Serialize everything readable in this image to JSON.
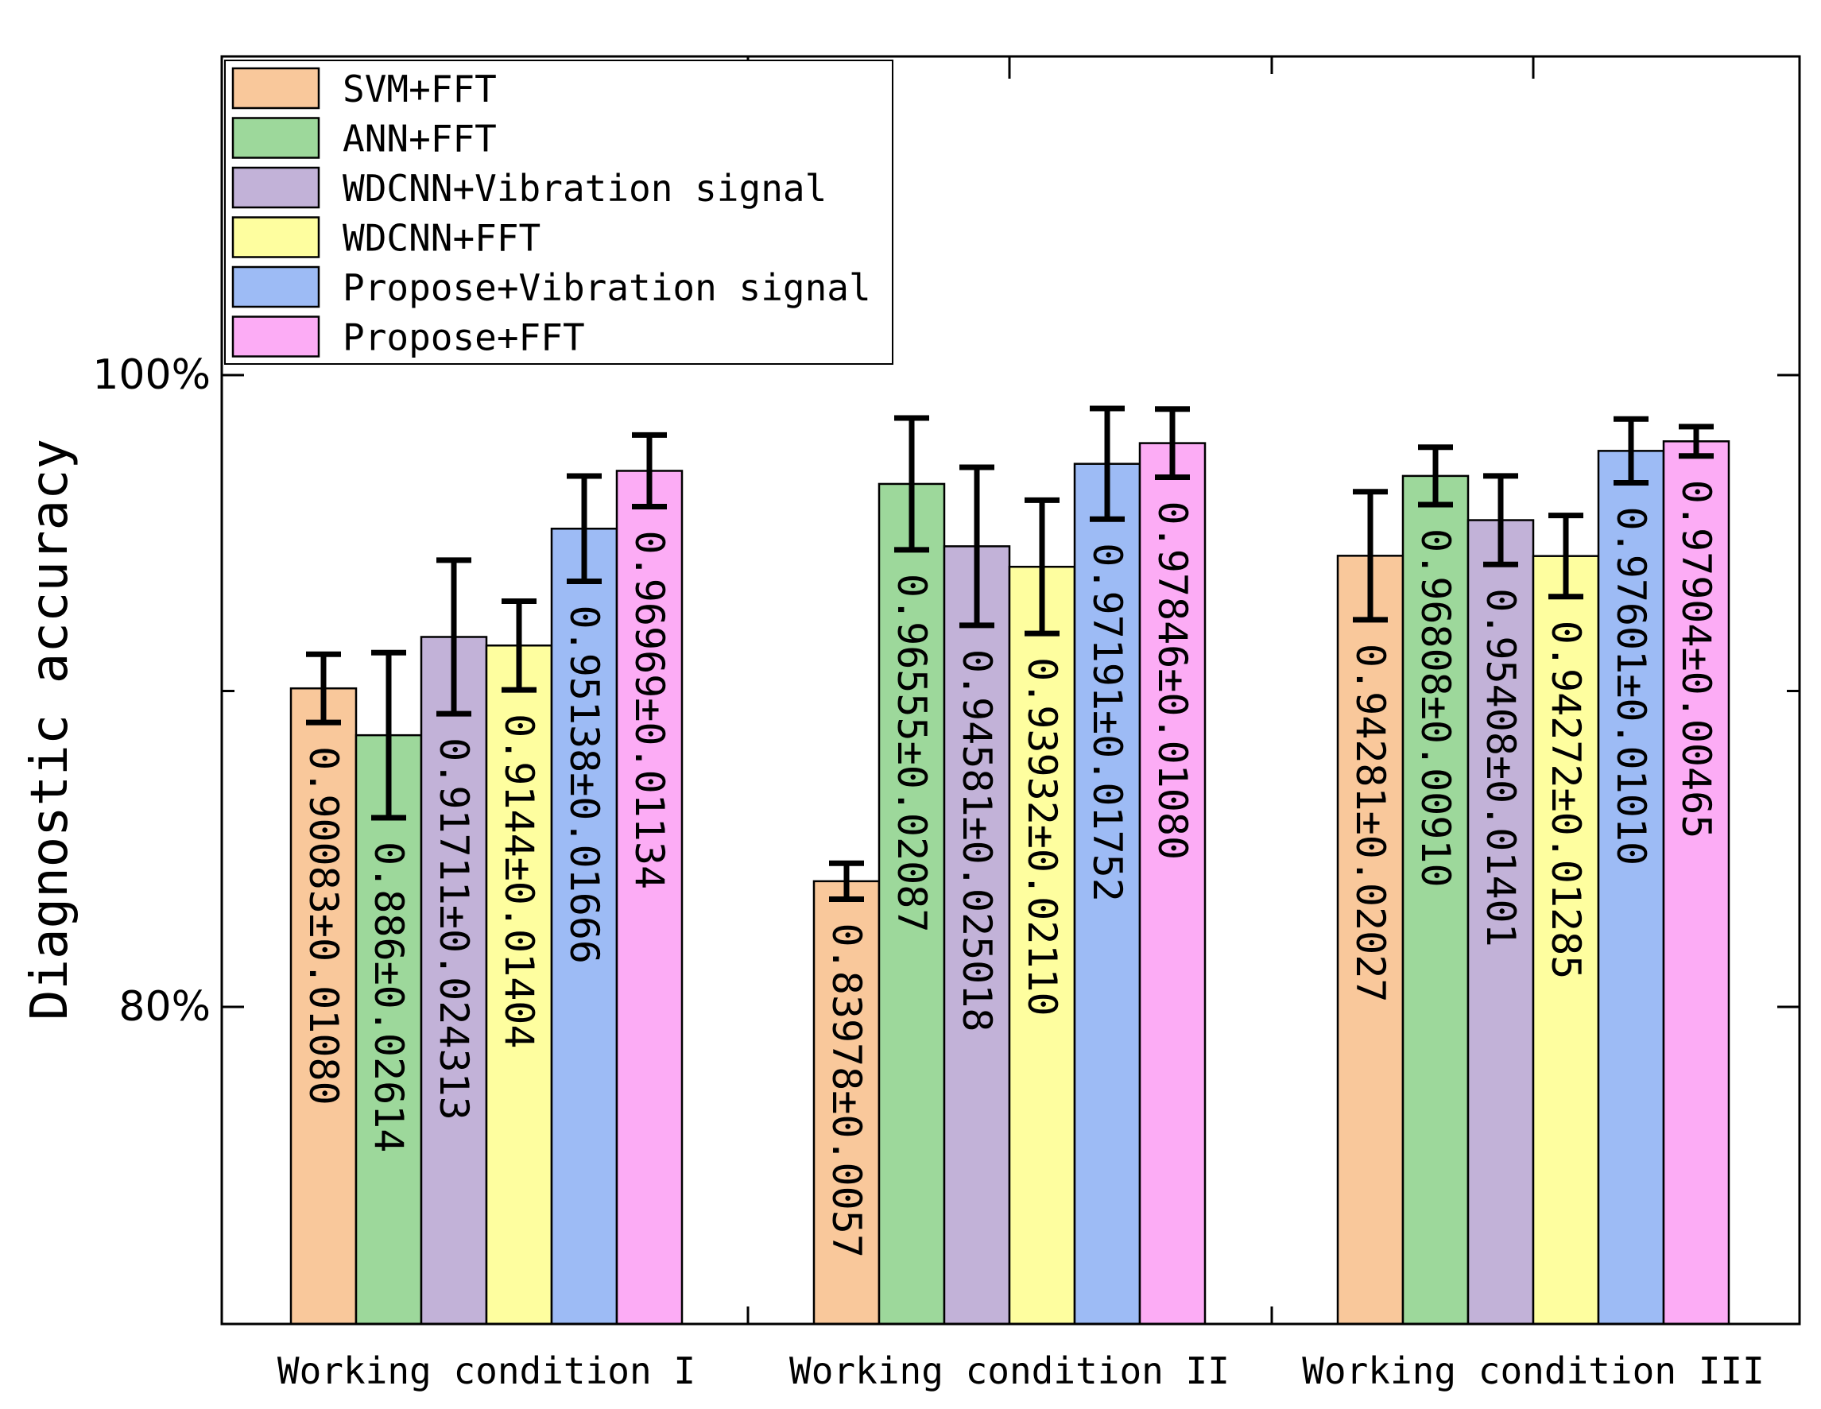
{
  "chart_data": {
    "type": "bar",
    "title": "",
    "xlabel": "",
    "ylabel": "Diagnostic accuracy",
    "ylim": [
      0.74,
      1.04
    ],
    "yticks": [
      {
        "value": 0.8,
        "label": "80%"
      },
      {
        "value": 1.0,
        "label": "100%"
      }
    ],
    "minor_ticks": [
      0.9
    ],
    "categories": [
      "Working condition I",
      "Working condition II",
      "Working condition III"
    ],
    "legend_position": "top-left",
    "grid": false,
    "series": [
      {
        "name": "SVM+FFT",
        "color": "#f9c89b",
        "values": [
          0.90083,
          0.83978,
          0.94281
        ],
        "errors": [
          0.0108,
          0.0057,
          0.02027
        ],
        "labels": [
          "0.90083±0.01080",
          "0.83978±0.0057",
          "0.94281±0.02027"
        ]
      },
      {
        "name": "ANN+FFT",
        "color": "#9dd89b",
        "values": [
          0.886,
          0.96555,
          0.96808
        ],
        "errors": [
          0.02614,
          0.02087,
          0.0091
        ],
        "labels": [
          "0.886±0.02614",
          "0.96555±0.02087",
          "0.96808±0.00910"
        ]
      },
      {
        "name": "WDCNN+Vibration signal",
        "color": "#c2b2d8",
        "values": [
          0.91711,
          0.94581,
          0.95408
        ],
        "errors": [
          0.024313,
          0.025018,
          0.01401
        ],
        "labels": [
          "0.91711±0.024313",
          "0.94581±0.025018",
          "0.95408±0.01401"
        ]
      },
      {
        "name": "WDCNN+FFT",
        "color": "#fefe9f",
        "values": [
          0.9144,
          0.93932,
          0.94272
        ],
        "errors": [
          0.01404,
          0.0211,
          0.01285
        ],
        "labels": [
          "0.9144±0.01404",
          "0.93932±0.02110",
          "0.94272±0.01285"
        ]
      },
      {
        "name": "Propose+Vibration signal",
        "color": "#9dbbf5",
        "values": [
          0.95138,
          0.97191,
          0.97601
        ],
        "errors": [
          0.01666,
          0.01752,
          0.0101
        ],
        "labels": [
          "0.95138±0.01666",
          "0.97191±0.01752",
          "0.97601±0.01010"
        ]
      },
      {
        "name": "Propose+FFT",
        "color": "#fcacf5",
        "values": [
          0.96969,
          0.97846,
          0.97904
        ],
        "errors": [
          0.01134,
          0.0108,
          0.00465
        ],
        "labels": [
          "0.96969±0.01134",
          "0.97846±0.01080",
          "0.97904±0.00465"
        ]
      }
    ]
  }
}
